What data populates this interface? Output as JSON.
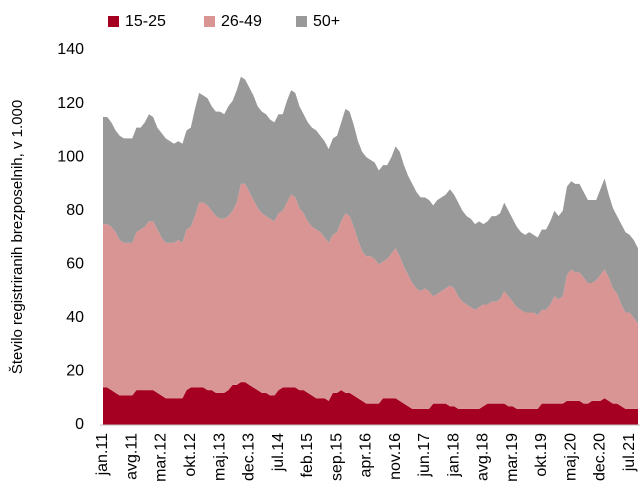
{
  "chart_data": {
    "type": "stacked-area",
    "y_label": "Število registriranih brezposelnih, v 1.000",
    "categories": [
      "jan.11",
      null,
      null,
      null,
      null,
      null,
      null,
      "avg.11",
      null,
      null,
      null,
      null,
      null,
      null,
      "mar.12",
      null,
      null,
      null,
      null,
      null,
      null,
      "okt.12",
      null,
      null,
      null,
      null,
      null,
      null,
      "maj.13",
      null,
      null,
      null,
      null,
      null,
      null,
      "dec.13",
      null,
      null,
      null,
      null,
      null,
      null,
      "jul.14",
      null,
      null,
      null,
      null,
      null,
      null,
      "feb.15",
      null,
      null,
      null,
      null,
      null,
      null,
      "sep.15",
      null,
      null,
      null,
      null,
      null,
      null,
      "apr.16",
      null,
      null,
      null,
      null,
      null,
      null,
      "nov.16",
      null,
      null,
      null,
      null,
      null,
      null,
      "jun.17",
      null,
      null,
      null,
      null,
      null,
      null,
      "jan.18",
      null,
      null,
      null,
      null,
      null,
      null,
      "avg.18",
      null,
      null,
      null,
      null,
      null,
      null,
      "mar.19",
      null,
      null,
      null,
      null,
      null,
      null,
      "okt.19",
      null,
      null,
      null,
      null,
      null,
      null,
      "maj.20",
      null,
      null,
      null,
      null,
      null,
      null,
      "dec.20",
      null,
      null,
      null,
      null,
      null,
      null,
      "jul.21",
      null,
      null
    ],
    "series": [
      {
        "name": "15-25",
        "color": "#a50021",
        "values": [
          14,
          14,
          13,
          12,
          11,
          11,
          11,
          11,
          13,
          13,
          13,
          13,
          13,
          12,
          11,
          10,
          10,
          10,
          10,
          10,
          13,
          14,
          14,
          14,
          14,
          13,
          13,
          12,
          12,
          12,
          13,
          15,
          15,
          16,
          16,
          15,
          14,
          13,
          12,
          12,
          11,
          11,
          13,
          14,
          14,
          14,
          14,
          13,
          13,
          12,
          11,
          10,
          10,
          10,
          9,
          12,
          12,
          13,
          12,
          12,
          11,
          10,
          9,
          8,
          8,
          8,
          8,
          10,
          10,
          10,
          10,
          9,
          8,
          7,
          6,
          6,
          6,
          6,
          6,
          8,
          8,
          8,
          8,
          7,
          7,
          6,
          6,
          6,
          6,
          6,
          6,
          7,
          8,
          8,
          8,
          8,
          8,
          7,
          7,
          6,
          6,
          6,
          6,
          6,
          6,
          8,
          8,
          8,
          8,
          8,
          8,
          9,
          9,
          9,
          9,
          8,
          8,
          9,
          9,
          9,
          10,
          9,
          8,
          8,
          7,
          6,
          6,
          6,
          6
        ]
      },
      {
        "name": "26-49",
        "color": "#d99594",
        "values": [
          61,
          61,
          61,
          60,
          58,
          57,
          57,
          57,
          59,
          60,
          61,
          63,
          63,
          61,
          59,
          58,
          58,
          58,
          59,
          58,
          60,
          60,
          64,
          69,
          69,
          69,
          67,
          66,
          65,
          65,
          65,
          65,
          68,
          74,
          74,
          72,
          70,
          68,
          67,
          66,
          66,
          65,
          66,
          66,
          69,
          72,
          71,
          68,
          66,
          64,
          63,
          63,
          62,
          60,
          59,
          59,
          60,
          63,
          67,
          66,
          63,
          59,
          56,
          55,
          55,
          54,
          52,
          51,
          52,
          54,
          56,
          54,
          51,
          49,
          47,
          45,
          44,
          45,
          44,
          40,
          41,
          42,
          43,
          45,
          44,
          42,
          40,
          39,
          38,
          37,
          38,
          38,
          37,
          38,
          38,
          39,
          42,
          41,
          39,
          38,
          37,
          36,
          36,
          36,
          35,
          35,
          35,
          37,
          40,
          39,
          40,
          47,
          49,
          48,
          48,
          47,
          45,
          44,
          45,
          47,
          48,
          46,
          43,
          41,
          38,
          36,
          36,
          34,
          32
        ]
      },
      {
        "name": "50+",
        "color": "#999999",
        "values": [
          40,
          40,
          39,
          38,
          39,
          39,
          39,
          39,
          39,
          38,
          39,
          40,
          39,
          38,
          39,
          39,
          38,
          37,
          37,
          37,
          37,
          37,
          40,
          41,
          40,
          40,
          39,
          39,
          40,
          39,
          41,
          41,
          42,
          40,
          39,
          39,
          39,
          38,
          38,
          38,
          37,
          37,
          37,
          36,
          38,
          39,
          39,
          38,
          37,
          37,
          37,
          37,
          36,
          36,
          35,
          36,
          36,
          37,
          39,
          39,
          38,
          37,
          37,
          37,
          36,
          36,
          35,
          36,
          35,
          36,
          38,
          39,
          38,
          37,
          37,
          36,
          35,
          34,
          34,
          34,
          35,
          35,
          35,
          36,
          35,
          35,
          34,
          33,
          33,
          32,
          32,
          30,
          31,
          32,
          32,
          32,
          33,
          32,
          31,
          30,
          29,
          29,
          30,
          29,
          29,
          30,
          30,
          31,
          32,
          31,
          32,
          33,
          33,
          33,
          33,
          32,
          31,
          31,
          30,
          32,
          34,
          31,
          30,
          29,
          30,
          30,
          29,
          29,
          28
        ]
      }
    ],
    "ylim": [
      0,
      140
    ],
    "yticks": [
      0,
      20,
      40,
      60,
      80,
      100,
      120,
      140
    ],
    "grid": false,
    "legend": "top"
  }
}
